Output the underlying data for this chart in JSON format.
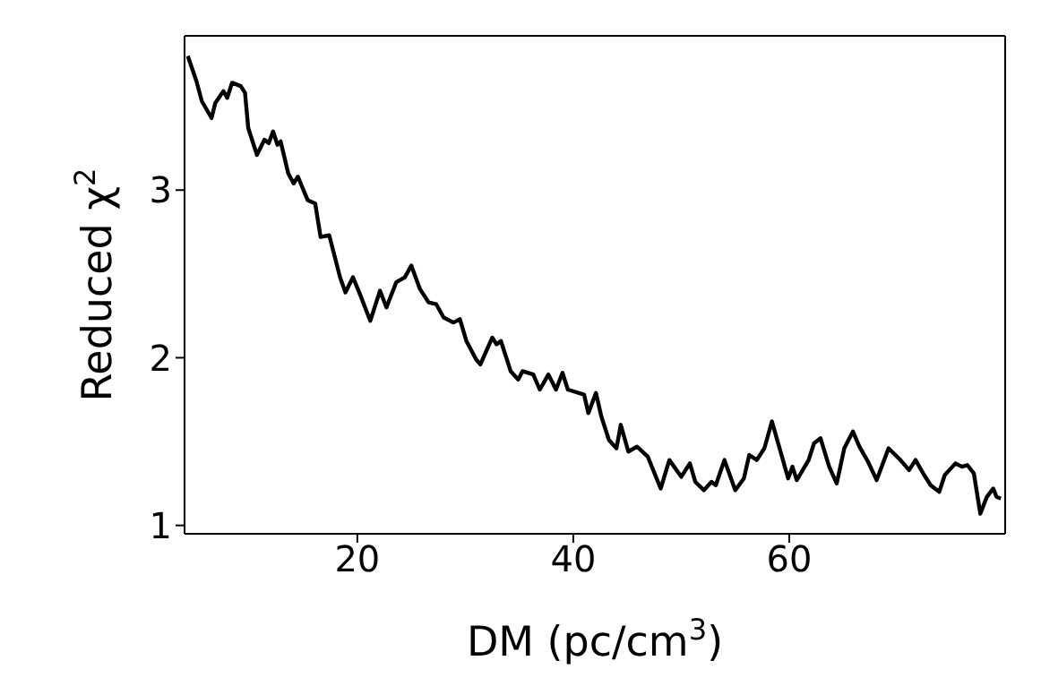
{
  "chart_data": {
    "type": "line",
    "xlabel": "DM (pc/cm$^{3}$)",
    "ylabel": "Reduced χ$^{2}$",
    "xlim": [
      4,
      80
    ],
    "ylim": [
      0.95,
      3.92
    ],
    "xticks": [
      20,
      40,
      60
    ],
    "yticks": [
      1,
      2,
      3
    ],
    "marker": "none",
    "line_style": "solid",
    "series": [
      {
        "color": "#000000",
        "x": [
          4.3,
          5.1,
          5.6,
          6.5,
          6.85,
          7.6,
          7.95,
          8.4,
          9.2,
          9.6,
          9.9,
          10.7,
          11.4,
          11.8,
          12.2,
          12.6,
          12.9,
          13.6,
          14.1,
          14.5,
          15.4,
          16.1,
          16.6,
          17.4,
          18.4,
          18.9,
          19.6,
          20.3,
          21.2,
          22.1,
          22.7,
          23.6,
          24.4,
          25.0,
          25.8,
          26.6,
          27.3,
          28.0,
          28.9,
          29.5,
          30.1,
          31.0,
          31.4,
          32.5,
          32.9,
          33.3,
          34.2,
          34.9,
          35.3,
          36.3,
          36.9,
          37.7,
          38.4,
          39.0,
          39.5,
          41.0,
          41.4,
          42.1,
          42.6,
          43.3,
          44.0,
          44.4,
          45.1,
          45.9,
          46.9,
          48.1,
          48.9,
          50.0,
          50.8,
          51.3,
          52.1,
          52.8,
          53.2,
          54.0,
          55.0,
          55.8,
          56.3,
          57.0,
          57.7,
          58.4,
          59.2,
          59.9,
          60.3,
          60.7,
          61.8,
          62.3,
          62.9,
          63.7,
          64.4,
          65.1,
          65.9,
          66.5,
          67.3,
          68.1,
          69.2,
          70.3,
          71.1,
          71.7,
          72.5,
          73.1,
          73.9,
          74.4,
          75.4,
          76.0,
          76.5,
          77.1,
          77.7,
          78.3,
          78.9,
          79.2,
          79.6
        ],
        "values": [
          3.8,
          3.65,
          3.53,
          3.43,
          3.52,
          3.59,
          3.55,
          3.64,
          3.62,
          3.58,
          3.37,
          3.21,
          3.3,
          3.28,
          3.35,
          3.27,
          3.29,
          3.1,
          3.04,
          3.08,
          2.94,
          2.92,
          2.72,
          2.73,
          2.48,
          2.39,
          2.48,
          2.37,
          2.22,
          2.4,
          2.3,
          2.45,
          2.48,
          2.55,
          2.41,
          2.33,
          2.32,
          2.24,
          2.21,
          2.23,
          2.1,
          1.99,
          1.96,
          2.12,
          2.08,
          2.1,
          1.92,
          1.87,
          1.92,
          1.9,
          1.81,
          1.9,
          1.81,
          1.91,
          1.81,
          1.78,
          1.67,
          1.79,
          1.65,
          1.51,
          1.46,
          1.6,
          1.44,
          1.47,
          1.41,
          1.22,
          1.39,
          1.29,
          1.37,
          1.26,
          1.21,
          1.26,
          1.24,
          1.39,
          1.21,
          1.28,
          1.42,
          1.39,
          1.46,
          1.62,
          1.44,
          1.28,
          1.35,
          1.27,
          1.39,
          1.49,
          1.52,
          1.35,
          1.25,
          1.46,
          1.56,
          1.47,
          1.38,
          1.27,
          1.46,
          1.39,
          1.33,
          1.39,
          1.3,
          1.24,
          1.2,
          1.3,
          1.37,
          1.35,
          1.36,
          1.31,
          1.07,
          1.17,
          1.22,
          1.17,
          1.16
        ]
      }
    ]
  }
}
